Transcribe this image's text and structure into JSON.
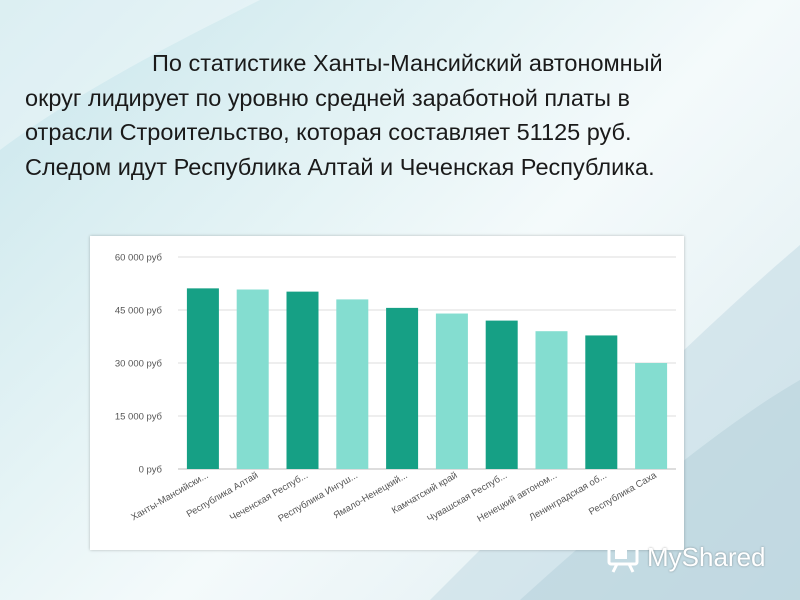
{
  "slide": {
    "text_lines": [
      "По статистике Ханты-Мансийский автономный",
      "округ лидирует по уровню средней заработной платы в",
      "отрасли Строительство, которая составляет 51125 руб.",
      "Следом идут Республика Алтай и Чеченская Республика."
    ]
  },
  "watermark": {
    "text": "MyShared",
    "icon": "slide-icon"
  },
  "colors": {
    "dark_bar": "#16a085",
    "light_bar": "#84ddd0",
    "grid": "#dddddd",
    "axis_text": "#555555"
  },
  "chart_data": {
    "type": "bar",
    "categories": [
      "Ханты-Мансийски...",
      "Республика Алтай",
      "Чеченская Респуб...",
      "Республика Ингуш...",
      "Ямало-Ненецкий...",
      "Камчатский край",
      "Чувашская Респуб...",
      "Ненецкий автоном...",
      "Ленинградская об...",
      "Республика Саха"
    ],
    "values": [
      51125,
      50800,
      50200,
      48000,
      45600,
      44000,
      42000,
      39000,
      37800,
      30000
    ],
    "ylim": [
      0,
      60000
    ],
    "yticks": [
      0,
      15000,
      30000,
      45000,
      60000
    ],
    "ytick_labels": [
      "0 руб",
      "15 000 руб",
      "30 000 руб",
      "45 000 руб",
      "60 000 руб"
    ],
    "grid": true,
    "legend": "none",
    "title": "",
    "xlabel": "",
    "ylabel": ""
  }
}
